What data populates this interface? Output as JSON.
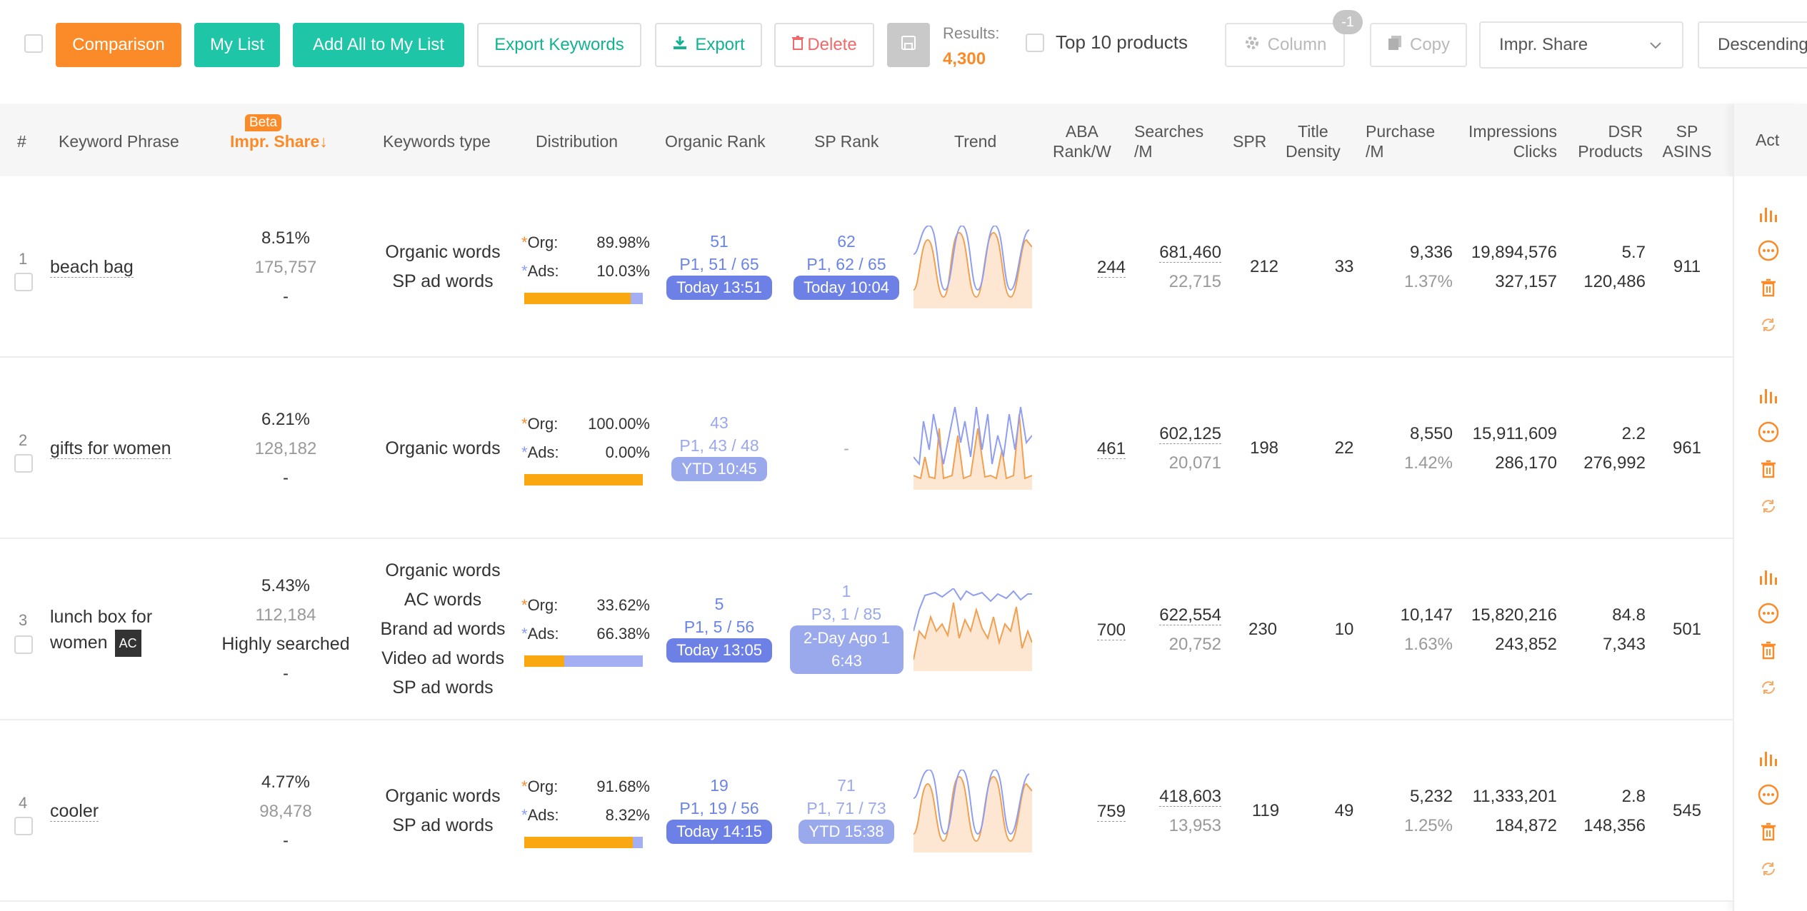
{
  "toolbar": {
    "comparison": "Comparison",
    "my_list": "My List",
    "add_all": "Add All to My List",
    "export_keywords": "Export Keywords",
    "export": "Export",
    "delete": "Delete",
    "results_label": "Results:",
    "results_count": "4,300",
    "top10": "Top 10 products",
    "column": "Column",
    "column_badge": "-1",
    "copy": "Copy",
    "sort_field": "Impr. Share",
    "sort_order": "Descending"
  },
  "columns": {
    "num": "#",
    "keyword": "Keyword Phrase",
    "impr_share": "Impr. Share",
    "impr_beta": "Beta",
    "ktype": "Keywords type",
    "distribution": "Distribution",
    "organic_rank": "Organic Rank",
    "sp_rank": "SP Rank",
    "trend": "Trend",
    "aba_1": "ABA",
    "aba_2": "Rank/W",
    "searches_1": "Searches",
    "searches_2": "/M",
    "spr": "SPR",
    "title_1": "Title",
    "title_2": "Density",
    "purchase_1": "Purchase",
    "purchase_2": "/M",
    "impr_1": "Impressions",
    "impr_2": "Clicks",
    "dsr_1": "DSR",
    "dsr_2": "Products",
    "sp_1": "SP",
    "sp_2": "ASINS",
    "act": "Act"
  },
  "rows": [
    {
      "index": "1",
      "keyword": "beach bag",
      "impr_pct": "8.51%",
      "impr_count": "175,757",
      "impr_note": "-",
      "types": [
        "Organic words",
        "SP ad words"
      ],
      "org_label": "Org:",
      "org": "89.98%",
      "ads_label": "Ads:",
      "ads": "10.03%",
      "org_fraction": 0.8998,
      "organic_rank": "51",
      "organic_page": "P1, 51 / 65",
      "organic_time": "Today 13:51",
      "sp_rank": "62",
      "sp_page": "P1, 62 / 65",
      "sp_time": "Today 10:04",
      "aba": "244",
      "searches": "681,460",
      "searches_sub": "22,715",
      "spr": "212",
      "title_density": "33",
      "purchase": "9,336",
      "purchase_rate": "1.37%",
      "impressions": "19,894,576",
      "clicks": "327,157",
      "dsr": "5.7",
      "products": "120,486",
      "sp_asins": "911"
    },
    {
      "index": "2",
      "keyword": "gifts for women",
      "impr_pct": "6.21%",
      "impr_count": "128,182",
      "impr_note": "-",
      "types": [
        "Organic words"
      ],
      "org_label": "Org:",
      "org": "100.00%",
      "ads_label": "Ads:",
      "ads": "0.00%",
      "org_fraction": 1.0,
      "organic_rank": "43",
      "organic_page": "P1, 43 / 48",
      "organic_time": "YTD 10:45",
      "sp_rank": "-",
      "aba": "461",
      "searches": "602,125",
      "searches_sub": "20,071",
      "spr": "198",
      "title_density": "22",
      "purchase": "8,550",
      "purchase_rate": "1.42%",
      "impressions": "15,911,609",
      "clicks": "286,170",
      "dsr": "2.2",
      "products": "276,992",
      "sp_asins": "961"
    },
    {
      "index": "3",
      "keyword": "lunch box for",
      "keyword_2": "women",
      "keyword_tag": "AC",
      "impr_pct": "5.43%",
      "impr_count": "112,184",
      "impr_label": "Highly searched",
      "impr_note": "-",
      "types": [
        "Organic words",
        "AC words",
        "Brand ad words",
        "Video ad words",
        "SP ad words"
      ],
      "org_label": "Org:",
      "org": "33.62%",
      "ads_label": "Ads:",
      "ads": "66.38%",
      "org_fraction": 0.3362,
      "organic_rank": "5",
      "organic_page": "P1, 5 / 56",
      "organic_time": "Today 13:05",
      "sp_rank": "1",
      "sp_page": "P3, 1 / 85",
      "sp_time_1": "2-Day Ago 1",
      "sp_time_2": "6:43",
      "aba": "700",
      "searches": "622,554",
      "searches_sub": "20,752",
      "spr": "230",
      "title_density": "10",
      "purchase": "10,147",
      "purchase_rate": "1.63%",
      "impressions": "15,820,216",
      "clicks": "243,852",
      "dsr": "84.8",
      "products": "7,343",
      "sp_asins": "501"
    },
    {
      "index": "4",
      "keyword": "cooler",
      "impr_pct": "4.77%",
      "impr_count": "98,478",
      "impr_note": "-",
      "types": [
        "Organic words",
        "SP ad words"
      ],
      "org_label": "Org:",
      "org": "91.68%",
      "ads_label": "Ads:",
      "ads": "8.32%",
      "org_fraction": 0.9168,
      "organic_rank": "19",
      "organic_page": "P1, 19 / 56",
      "organic_time": "Today 14:15",
      "sp_rank": "71",
      "sp_page": "P1, 71 / 73",
      "sp_time": "YTD 15:38",
      "aba": "759",
      "searches": "418,603",
      "searches_sub": "13,953",
      "spr": "119",
      "title_density": "49",
      "purchase": "5,232",
      "purchase_rate": "1.25%",
      "impressions": "11,333,201",
      "clicks": "184,872",
      "dsr": "2.8",
      "products": "148,356",
      "sp_asins": "545"
    }
  ],
  "colors": {
    "accent": "#fa8b28",
    "teal": "#1ec5a6",
    "rank_blue": "#6c84e3",
    "org_bar": "#f9a812",
    "ads_bar": "#a3aef3"
  },
  "icons": [
    "download-icon",
    "trash-icon",
    "save-icon",
    "gear-icon",
    "copy-icon",
    "chevron-down-icon",
    "bar-chart-icon",
    "more-icon",
    "refresh-icon"
  ]
}
